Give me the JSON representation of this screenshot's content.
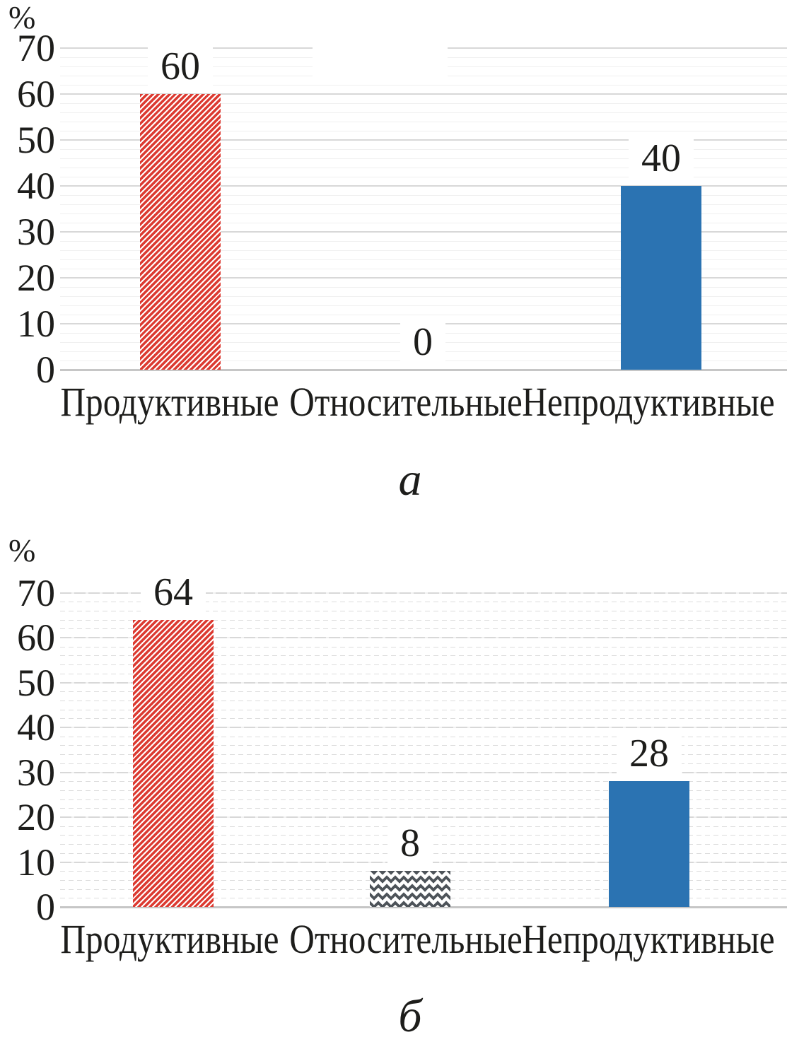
{
  "figure": {
    "background": "#ffffff",
    "panels_order": [
      "а",
      "б"
    ]
  },
  "colors": {
    "red": "#dc3a31",
    "blue": "#2b73b2",
    "gray": "#4e545a",
    "grid_major": "#d8d8d8",
    "grid_minor": "#f0f0f0",
    "grid_minor_dash": "#dcdcdc",
    "axis_line": "#c6c6c6",
    "text": "#1d1d1b",
    "label_bg": "#ffffff"
  },
  "chart_data": [
    {
      "type": "bar",
      "panel_label": "а",
      "title": "",
      "xlabel": "",
      "ylabel": "%",
      "categories": [
        "Продуктивные",
        "Относительные",
        "Непродуктивные"
      ],
      "values": [
        60,
        0,
        40
      ],
      "bar_labels": [
        "60",
        "0",
        "40"
      ],
      "bar_styles": [
        "red-diagonal-hatch",
        "none",
        "blue-solid"
      ],
      "yticks": [
        0,
        10,
        20,
        30,
        40,
        50,
        60,
        70
      ],
      "ylim": [
        0,
        70
      ],
      "grid": {
        "major_every": 10,
        "minor_every": 2,
        "line_style": "solid"
      },
      "legend": "none"
    },
    {
      "type": "bar",
      "panel_label": "б",
      "title": "",
      "xlabel": "",
      "ylabel": "%",
      "categories": [
        "Продуктивные",
        "Относительные",
        "Непродуктивные"
      ],
      "values": [
        64,
        8,
        28
      ],
      "bar_labels": [
        "64",
        "8",
        "28"
      ],
      "bar_styles": [
        "red-diagonal-hatch",
        "gray-zigzag",
        "blue-solid"
      ],
      "yticks": [
        0,
        10,
        20,
        30,
        40,
        50,
        60,
        70
      ],
      "ylim": [
        0,
        70
      ],
      "grid": {
        "major_every": 10,
        "minor_every": 2,
        "line_style": "dashed"
      },
      "legend": "none"
    }
  ]
}
